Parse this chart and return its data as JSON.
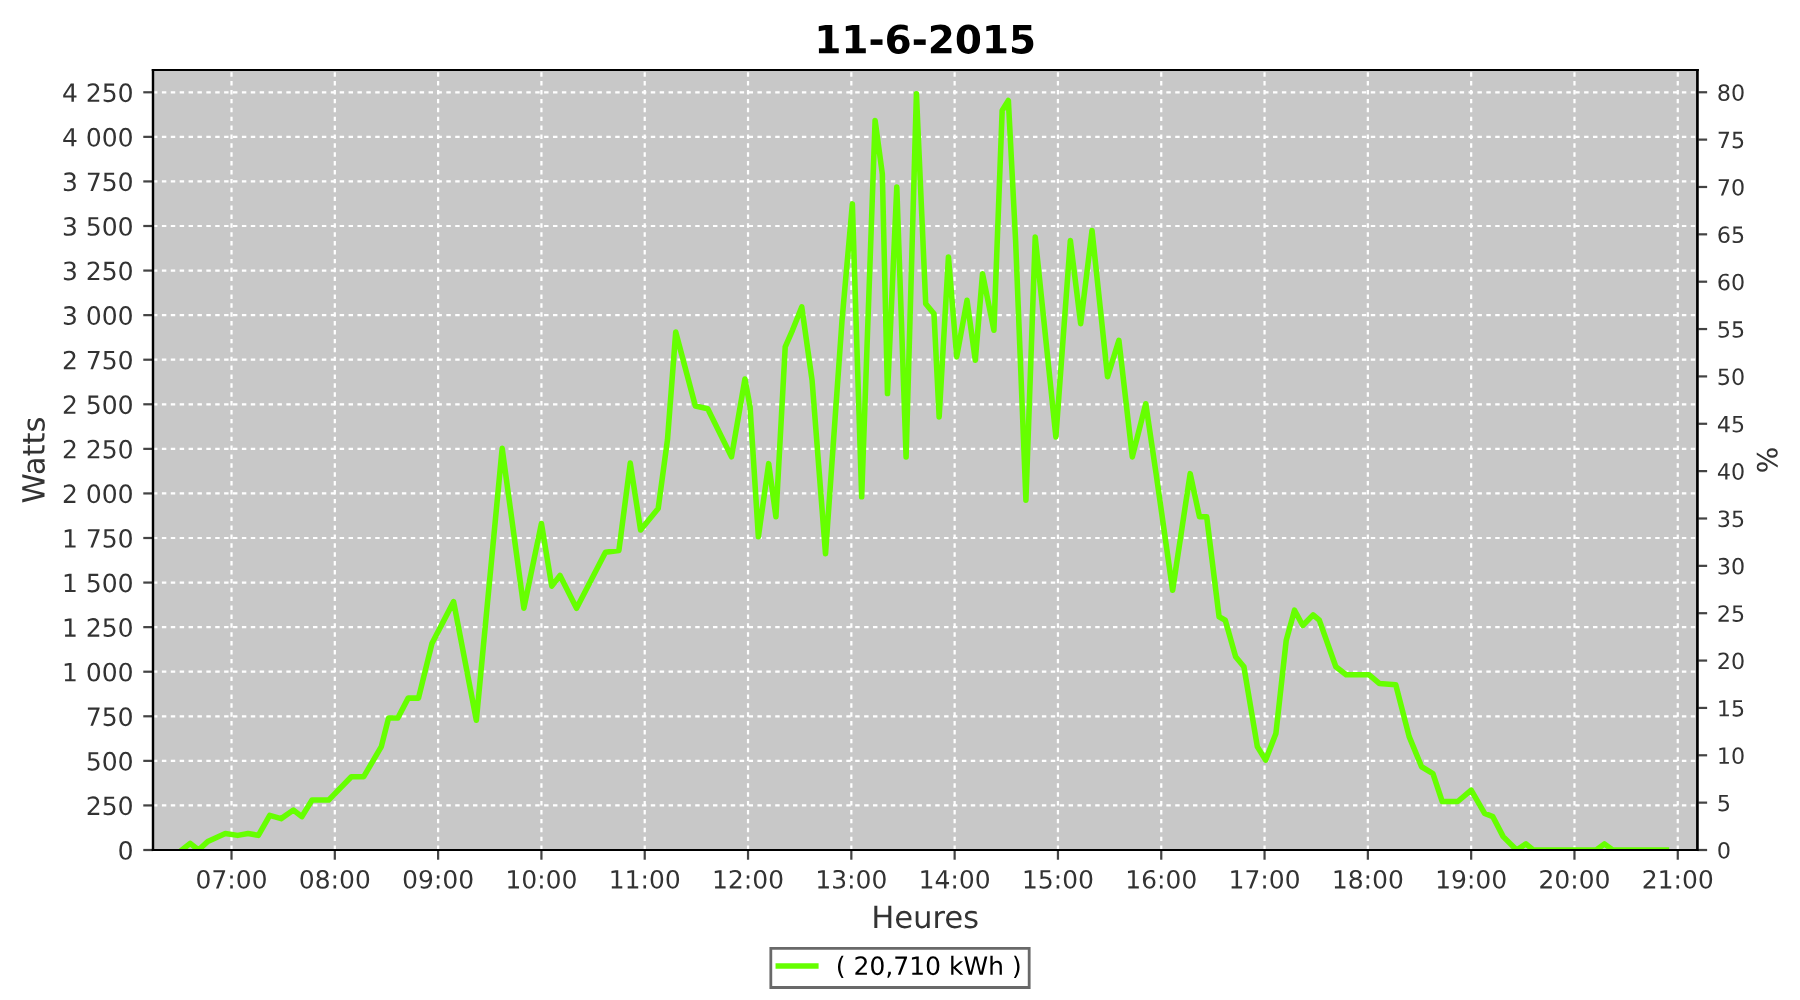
{
  "chart_data": {
    "type": "line",
    "title": "11-6-2015",
    "xlabel": "Heures",
    "ylabel": "Watts",
    "y2label": "%",
    "xlim": [
      6.24,
      21.19
    ],
    "xticks": [
      {
        "value": 7,
        "label": "07:00"
      },
      {
        "value": 8,
        "label": "08:00"
      },
      {
        "value": 9,
        "label": "09:00"
      },
      {
        "value": 10,
        "label": "10:00"
      },
      {
        "value": 11,
        "label": "11:00"
      },
      {
        "value": 12,
        "label": "12:00"
      },
      {
        "value": 13,
        "label": "13:00"
      },
      {
        "value": 14,
        "label": "14:00"
      },
      {
        "value": 15,
        "label": "15:00"
      },
      {
        "value": 16,
        "label": "16:00"
      },
      {
        "value": 17,
        "label": "17:00"
      },
      {
        "value": 18,
        "label": "18:00"
      },
      {
        "value": 19,
        "label": "19:00"
      },
      {
        "value": 20,
        "label": "20:00"
      },
      {
        "value": 21,
        "label": "21:00"
      }
    ],
    "ylim": [
      0,
      4375
    ],
    "yticks": [
      {
        "value": 0,
        "label": "0"
      },
      {
        "value": 250,
        "label": "250"
      },
      {
        "value": 500,
        "label": "500"
      },
      {
        "value": 750,
        "label": "750"
      },
      {
        "value": 1000,
        "label": "1 000"
      },
      {
        "value": 1250,
        "label": "1 250"
      },
      {
        "value": 1500,
        "label": "1 500"
      },
      {
        "value": 1750,
        "label": "1 750"
      },
      {
        "value": 2000,
        "label": "2 000"
      },
      {
        "value": 2250,
        "label": "2 250"
      },
      {
        "value": 2500,
        "label": "2 500"
      },
      {
        "value": 2750,
        "label": "2 750"
      },
      {
        "value": 3000,
        "label": "3 000"
      },
      {
        "value": 3250,
        "label": "3 250"
      },
      {
        "value": 3500,
        "label": "3 500"
      },
      {
        "value": 3750,
        "label": "3 750"
      },
      {
        "value": 4000,
        "label": "4 000"
      },
      {
        "value": 4250,
        "label": "4 250"
      }
    ],
    "y2lim": [
      0,
      82.35
    ],
    "y2ticks": [
      0,
      5,
      10,
      15,
      20,
      25,
      30,
      35,
      40,
      45,
      50,
      55,
      60,
      65,
      70,
      75,
      80
    ],
    "grid": true,
    "legend": "bottom",
    "marker": "none",
    "line_style": "solid",
    "series": [
      {
        "name": "( 20,710 kWh )",
        "color": "#66ff00",
        "x": [
          6.52,
          6.6,
          6.68,
          6.77,
          6.94,
          7.06,
          7.16,
          7.26,
          7.37,
          7.48,
          7.6,
          7.68,
          7.78,
          7.94,
          8.16,
          8.28,
          8.45,
          8.52,
          8.61,
          8.71,
          8.81,
          8.94,
          9.15,
          9.37,
          9.62,
          9.83,
          10.0,
          10.1,
          10.18,
          10.34,
          10.62,
          10.75,
          10.86,
          10.96,
          11.13,
          11.22,
          11.3,
          11.49,
          11.61,
          11.84,
          11.97,
          12.02,
          12.1,
          12.2,
          12.27,
          12.36,
          12.43,
          12.52,
          12.62,
          12.75,
          12.91,
          13.01,
          13.1,
          13.23,
          13.3,
          13.35,
          13.44,
          13.53,
          13.63,
          13.72,
          13.8,
          13.85,
          13.94,
          14.02,
          14.12,
          14.2,
          14.27,
          14.38,
          14.46,
          14.52,
          14.59,
          14.69,
          14.78,
          14.98,
          15.12,
          15.22,
          15.33,
          15.48,
          15.59,
          15.72,
          15.85,
          15.95,
          16.11,
          16.28,
          16.37,
          16.44,
          16.56,
          16.62,
          16.72,
          16.8,
          16.93,
          17.01,
          17.11,
          17.21,
          17.29,
          17.37,
          17.47,
          17.53,
          17.69,
          17.79,
          18.01,
          18.11,
          18.27,
          18.4,
          18.52,
          18.63,
          18.72,
          18.87,
          19.0,
          19.13,
          19.21,
          19.31,
          19.44,
          19.53,
          19.6,
          20.21,
          20.29,
          20.37,
          20.89
        ],
        "values": [
          0,
          37,
          0,
          48,
          93,
          82,
          93,
          82,
          194,
          176,
          224,
          187,
          280,
          280,
          411,
          411,
          580,
          740,
          740,
          852,
          852,
          1158,
          1393,
          728,
          2253,
          1356,
          1831,
          1480,
          1540,
          1356,
          1670,
          1680,
          2170,
          1795,
          1915,
          2300,
          2905,
          2490,
          2475,
          2205,
          2642,
          2485,
          1757,
          2167,
          1869,
          2822,
          2915,
          3046,
          2634,
          1662,
          2971,
          3624,
          1981,
          4092,
          3792,
          2560,
          3718,
          2205,
          4241,
          3064,
          3008,
          2429,
          3326,
          2766,
          3083,
          2747,
          3232,
          2915,
          4148,
          4204,
          3419,
          1962,
          3438,
          2317,
          3419,
          2952,
          3475,
          2654,
          2859,
          2205,
          2503,
          2111,
          1457,
          2111,
          1869,
          1869,
          1308,
          1289,
          1084,
          1028,
          580,
          504,
          654,
          1177,
          1345,
          1259,
          1319,
          1289,
          1028,
          983,
          983,
          934,
          927,
          636,
          467,
          429,
          272,
          272,
          336,
          205,
          187,
          75,
          0,
          34,
          0,
          0,
          34,
          0,
          0
        ]
      }
    ]
  }
}
